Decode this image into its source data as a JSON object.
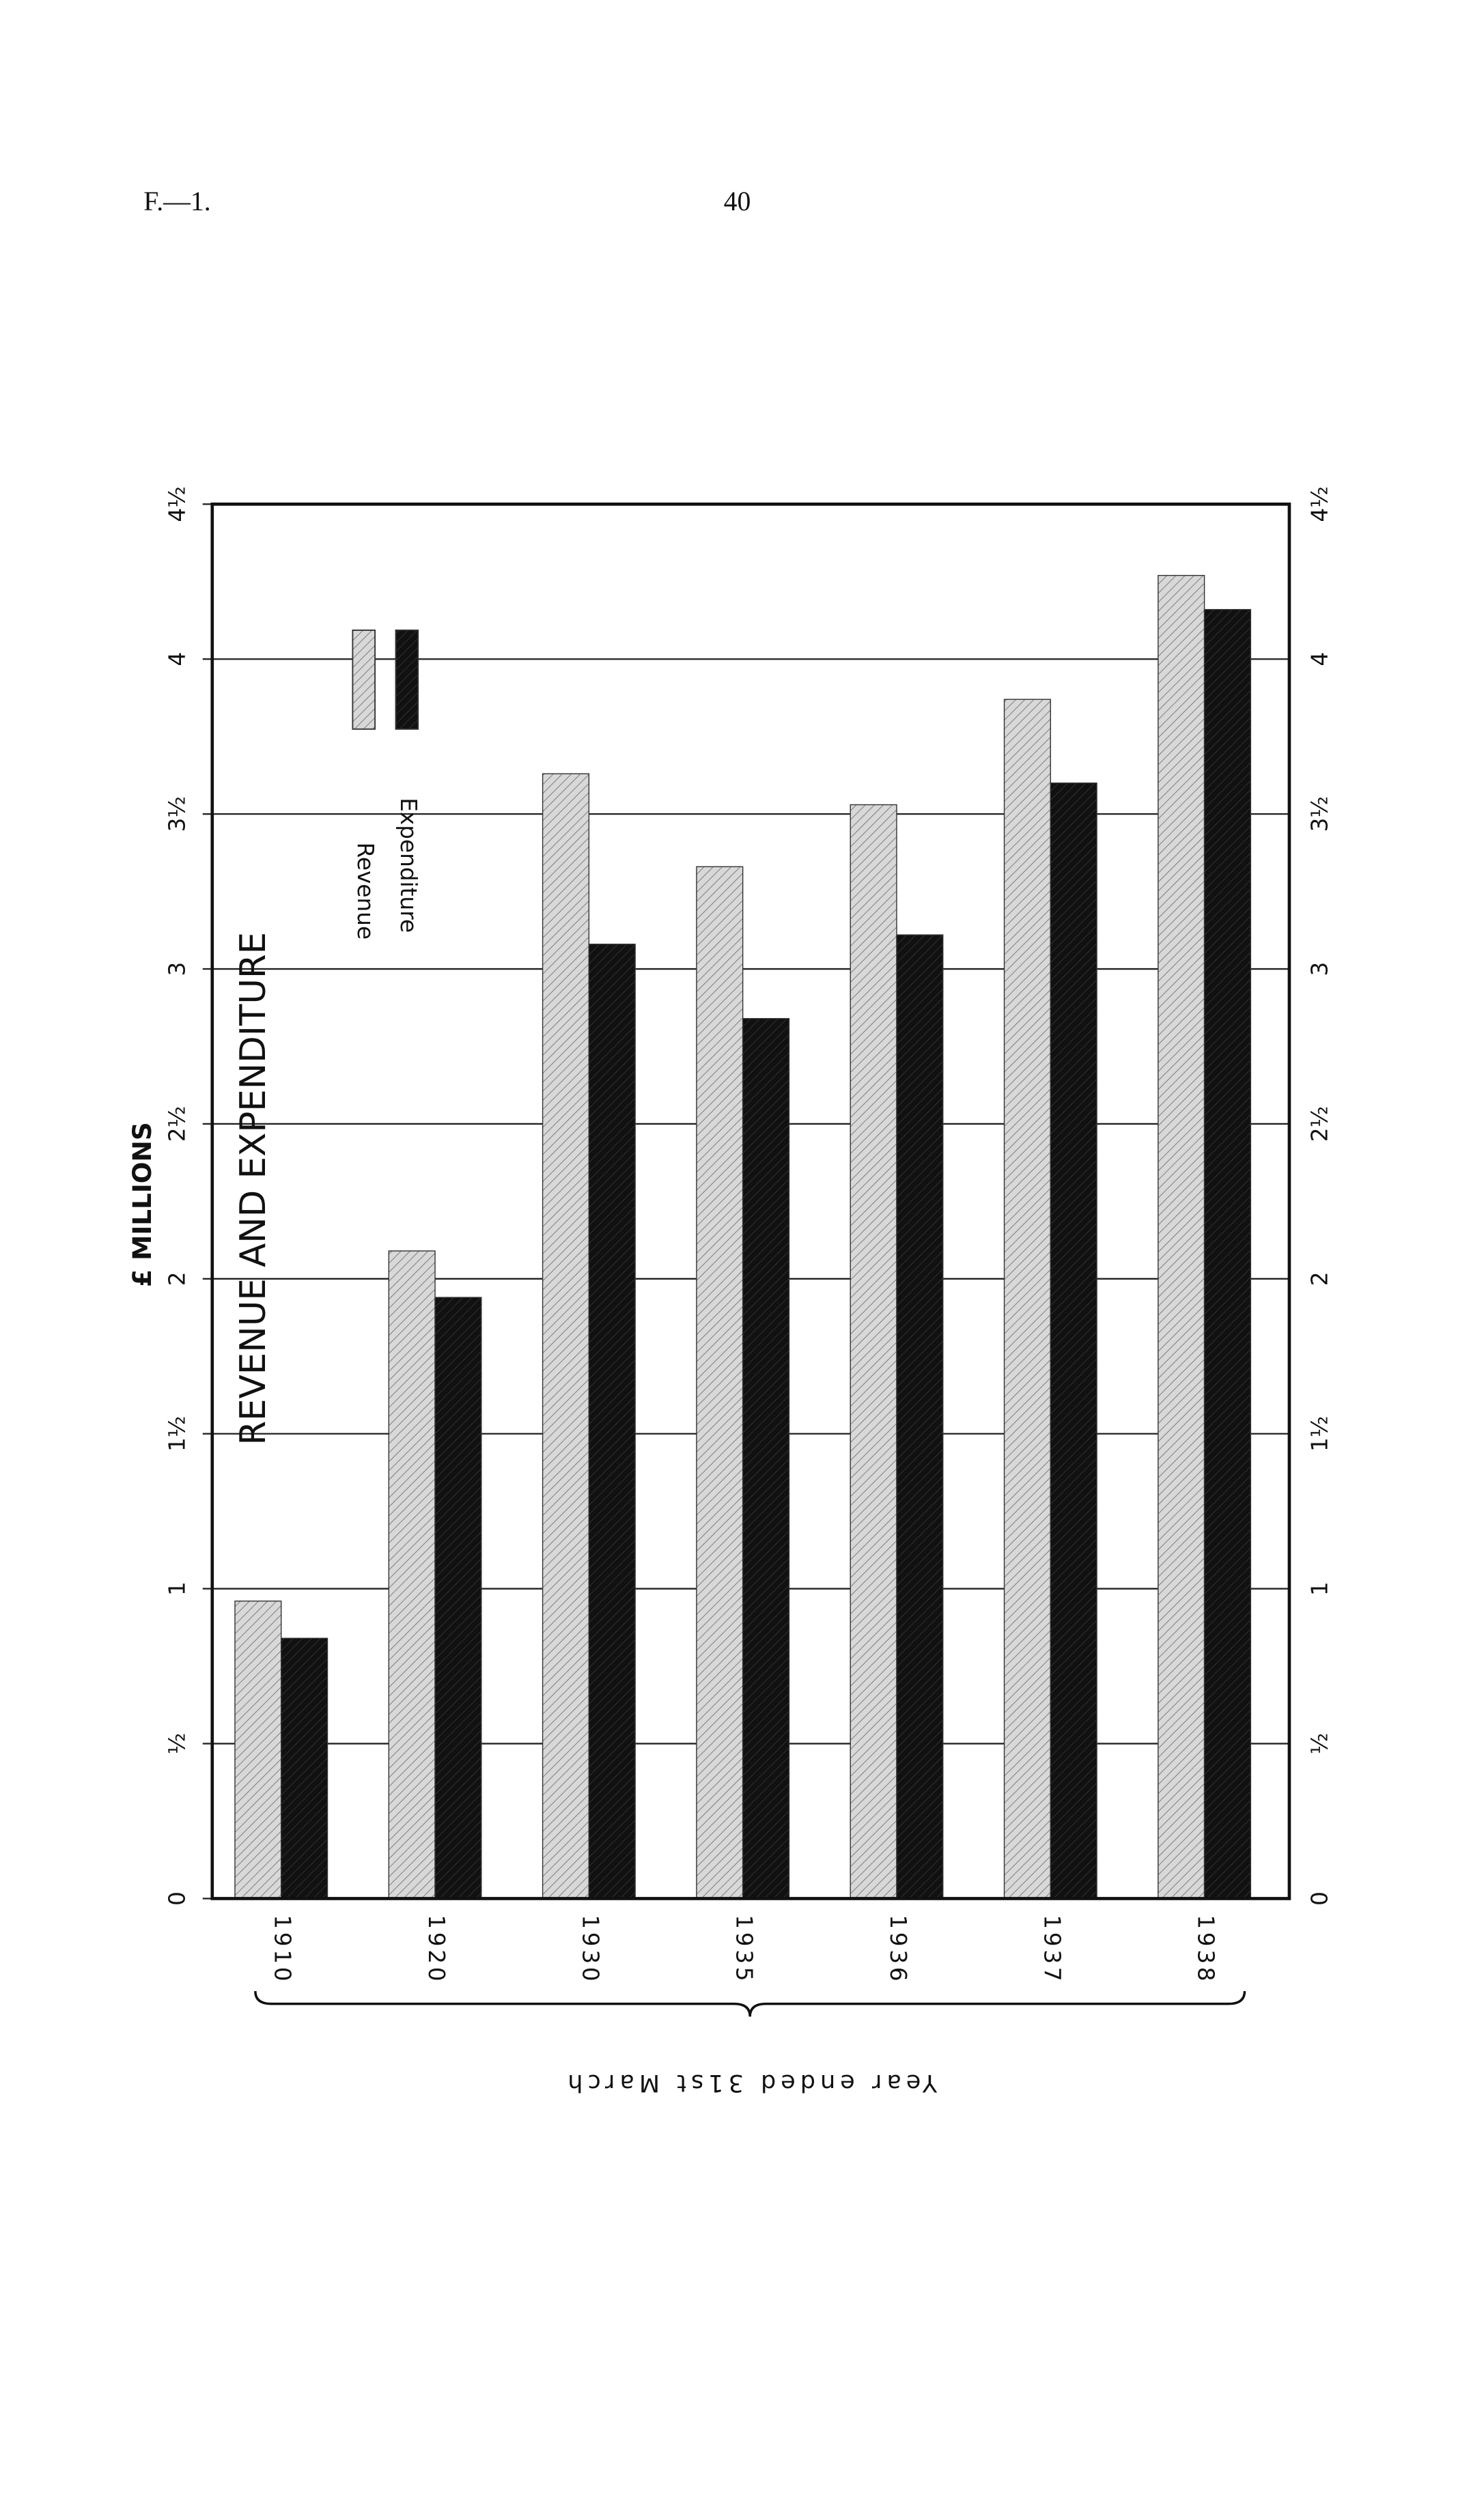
{
  "page": {
    "code": "F.—1.",
    "number": "40"
  },
  "chart_data": {
    "type": "bar",
    "title": "REVENUE AND EXPENDITURE",
    "y_label": "£ MILLIONS",
    "x_label": "Year ended 31st March",
    "categories": [
      "1910",
      "1920",
      "1930",
      "1935",
      "1936",
      "1937",
      "1938"
    ],
    "series": [
      {
        "name": "Revenue",
        "color": "#d8d8d8",
        "values": [
          0.96,
          2.09,
          3.63,
          3.33,
          3.53,
          3.87,
          4.27
        ]
      },
      {
        "name": "Expenditure",
        "color": "#111111",
        "values": [
          0.84,
          1.94,
          3.08,
          2.84,
          3.11,
          3.6,
          4.16
        ]
      }
    ],
    "ylim": [
      0,
      4.5
    ],
    "yticks": [
      0,
      {
        "value": 0.5,
        "label": "½"
      },
      1,
      {
        "value": 1.5,
        "label": "1½"
      },
      2,
      {
        "value": 2.5,
        "label": "2½"
      },
      3,
      {
        "value": 3.5,
        "label": "3½"
      },
      4,
      {
        "value": 4.5,
        "label": "4½"
      }
    ],
    "grid": true
  }
}
